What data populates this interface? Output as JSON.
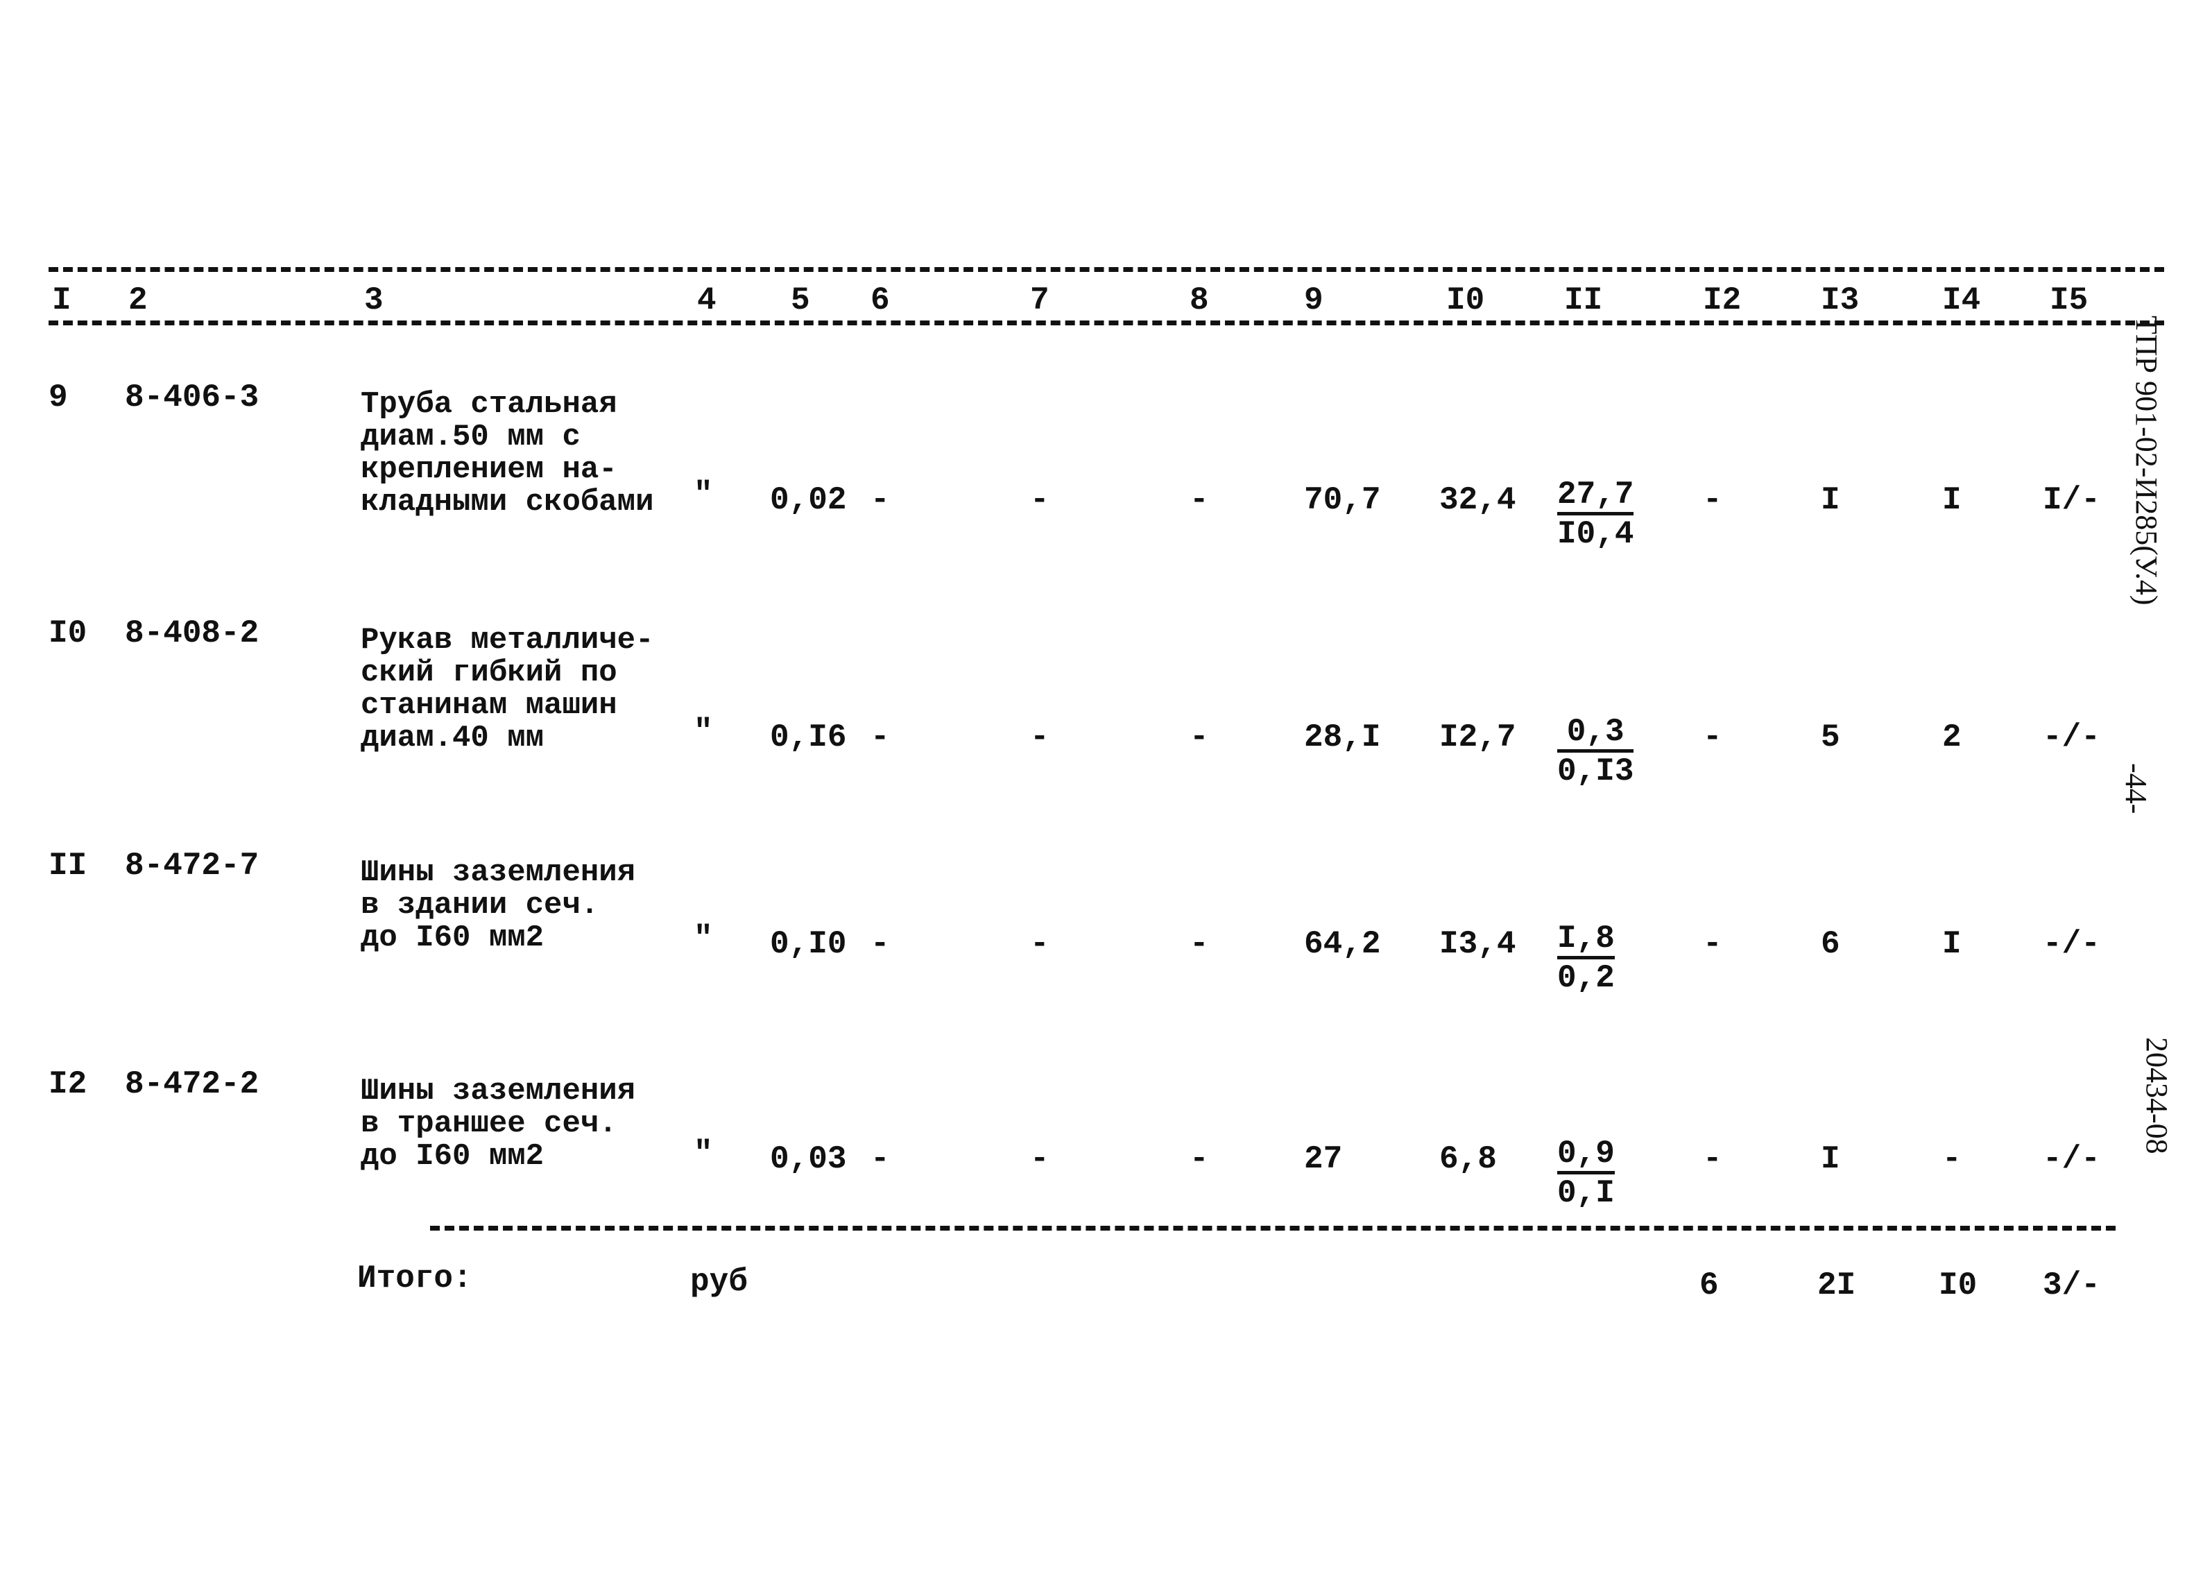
{
  "header": {
    "columns": [
      "I",
      "2",
      "3",
      "4",
      "5",
      "6",
      "7",
      "8",
      "9",
      "I0",
      "II",
      "I2",
      "I3",
      "I4",
      "I5"
    ]
  },
  "rows": [
    {
      "no": "9",
      "code": "8-406-3",
      "desc": "Труба стальная\nдиам.50 мм с\nкреплением на-\nкладными скобами",
      "unit": "\"",
      "c5": "0,02",
      "c6": "-",
      "c7": "-",
      "c8": "-",
      "c9": "70,7",
      "c10": "32,4",
      "c11_top": "27,7",
      "c11_bottom": "I0,4",
      "c12": "-",
      "c13": "I",
      "c14": "I",
      "c15": "I/-"
    },
    {
      "no": "I0",
      "code": "8-408-2",
      "desc": "Рукав металличе-\nский гибкий по\nстанинам машин\nдиам.40 мм",
      "unit": "\"",
      "c5": "0,I6",
      "c6": "-",
      "c7": "-",
      "c8": "-",
      "c9": "28,I",
      "c10": "I2,7",
      "c11_top": "0,3",
      "c11_bottom": "0,I3",
      "c12": "-",
      "c13": "5",
      "c14": "2",
      "c15": "-/-"
    },
    {
      "no": "II",
      "code": "8-472-7",
      "desc": "Шины заземления\nв здании сеч.\nдо I60 мм2",
      "unit": "\"",
      "c5": "0,I0",
      "c6": "-",
      "c7": "-",
      "c8": "-",
      "c9": "64,2",
      "c10": "I3,4",
      "c11_top": "I,8",
      "c11_bottom": "0,2",
      "c12": "-",
      "c13": "6",
      "c14": "I",
      "c15": "-/-"
    },
    {
      "no": "I2",
      "code": "8-472-2",
      "desc": "Шины заземления\nв траншее сеч.\nдо I60 мм2",
      "unit": "\"",
      "c5": "0,03",
      "c6": "-",
      "c7": "-",
      "c8": "-",
      "c9": "27",
      "c10": "6,8",
      "c11_top": "0,9",
      "c11_bottom": "0,I",
      "c12": "-",
      "c13": "I",
      "c14": "-",
      "c15": "-/-"
    }
  ],
  "total": {
    "label": "Итого:",
    "unit": "руб",
    "c12": "6",
    "c13": "2I",
    "c14": "I0",
    "c15": "3/-"
  },
  "margin": {
    "doc_code": "ТПР 901-02-И285(У.4)",
    "page": "-44-",
    "inventory": "20434-08"
  }
}
